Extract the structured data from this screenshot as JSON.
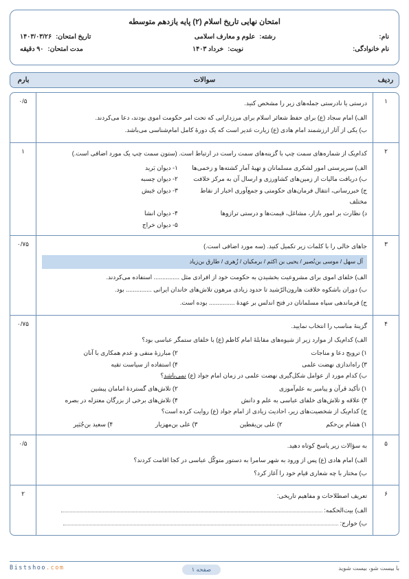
{
  "title": "امتحان نهایی تاریخ اسلام (۲) پایه یازدهم متوسطه",
  "info": {
    "row1": {
      "name_label": "نام:",
      "field_label": "رشته:",
      "field_value": "علوم و معارف اسلامی",
      "date_label": "تاریخ امتحان:",
      "date_value": "۱۴۰۳/۰۳/۲۶"
    },
    "row2": {
      "family_label": "نام خانوادگی:",
      "term_label": "نوبت:",
      "term_value": "خرداد ۱۴۰۳",
      "duration_label": "مدت امتحان:",
      "duration_value": "۹۰ دقیقه"
    }
  },
  "header": {
    "num": "ردیف",
    "q": "سوالات",
    "score": "بارم"
  },
  "questions": [
    {
      "num": "۱",
      "score": "۰/۵",
      "main": "درستی یا نادرستی جمله‌های زیر را مشخص کنید.",
      "subs": [
        "الف) امام سجاد (ع) برای حفظ شعائر اسلام برای مرزدارانی که تحت امر حکومت اموی بودند، دعا می‌کردند.",
        "ب) یکی از آثار ارزشمند امام هادی (ع) زیارت غدیر است که یک دورهٔ کامل امام‌شناسی می‌باشد."
      ]
    },
    {
      "num": "۲",
      "score": "۱",
      "main": "کدام‌یک از شماره‌های سمت چپ با گزینه‌های سمت راست در ارتباط است. (ستون سمت چپ یک مورد اضافی است.)",
      "pairs": [
        {
          "r": "الف) سرپرستی امور لشکری مسلمانان و تهیهٔ آمار کشته‌ها و زخمی‌ها",
          "l": "۱- دیوان بَرید"
        },
        {
          "r": "ب) دریافت مالیات از زمین‌های کشاورزی و ارسال آن به مرکز خلافت",
          "l": "۲- دیوان حِسبه"
        },
        {
          "r": "ج) خبررسانی، انتقال فرمان‌های حکومتی و جمع‌آوری اخبار از نقاط مختلف",
          "l": "۳- دیوان جَیش"
        },
        {
          "r": "د) نظارت بر امور بازار، مشاغل، قیمت‌ها و درستی ترازوها",
          "l": "۴- دیوان انشا"
        },
        {
          "r": "",
          "l": "۵- دیوان خراج"
        }
      ]
    },
    {
      "num": "۳",
      "score": "۰/۷۵",
      "main": "جاهای خالی را با کلمات زیر تکمیل کنید. (سه مورد اضافی است.)",
      "highlight": "آل سهل / موسی بن‌نُصیر / یحیی بن اکثم / برمکیان / زُهری / طارق بن‌زیاد",
      "subs": [
        "الف) خلفای اموی برای مشروعیت بخشیدن به حکومت خود از افرادی مثل ............... استفاده می‌کردند.",
        "ب) دوران باشکوه خلافت هارون‌الرّشید تا حدود زیادی مرهون تلاش‌های خاندان ایرانی ............... بود.",
        "ج) فرماندهی سپاه مسلمانان در فتح اندلس بر عهدهٔ ............... بوده است."
      ]
    },
    {
      "num": "۴",
      "score": "۰/۷۵",
      "main": "گزینهٔ مناسب را انتخاب نمایید.",
      "blocks": [
        {
          "q": "الف) کدام‌یک از موارد زیر از شیوه‌های مقابلهٔ امام کاظم (ع) با خلفای ستمگر عباسی بود؟",
          "opts": [
            "۱) ترویج دعا و مناجات",
            "۲) مبارزهٔ منفی و عدم همکاری با آنان",
            "۳) راه‌اندازی نهضت علمی",
            "۴) استفاده از سیاست تقیه"
          ]
        },
        {
          "q_html": "ب) کدام مورد از عوامل شکل‌گیری نهضت علمی در زمان امام جواد (ع) <span class='underlined'>نمی‌باشد</span>؟",
          "opts": [
            "۱) تأکید قرآن و پیامبر به علم‌آموزی",
            "۲) تلاش‌های گستردهٔ امامان پیشین",
            "۳) علاقه و تلاش‌های خلفای عباسی به علم و دانش",
            "۴) تلاش‌های برخی از بزرگان معتزله در بصره"
          ]
        },
        {
          "q": "ج) کدام‌یک از شخصیت‌های زیر، احادیث زیادی از امام جواد (ع) روایت کرده است؟",
          "opts4": [
            "۱) هشام بن‌حکم",
            "۲) علی بن‌یقطین",
            "۳) علی بن‌مهزیار",
            "۴) سعید بن‌جُبَیر"
          ]
        }
      ]
    },
    {
      "num": "۵",
      "score": "۰/۵",
      "main": "به سؤالات زیر پاسخ کوتاه دهید.",
      "subs": [
        "الف) امام هادی (ع) پس از ورود به شهر سامرا به دستور متوکّل عباسی در کجا اقامت کردند؟",
        "ب) مختار با چه شعاری قیام خود را آغاز کرد؟"
      ]
    },
    {
      "num": "۶",
      "score": "۲",
      "main": "تعریف اصطلاحات و مفاهیم تاریخی:",
      "subs": [
        "الف) بیت‌الحکمه:",
        "ب) خوارج:"
      ]
    }
  ],
  "footer": {
    "right": "با بیست شو، بیست شوید",
    "center": "صفحه ۱",
    "brand1": "Bistshoo",
    "brand2": ".com"
  },
  "colors": {
    "border": "#6b8fb5",
    "header_bg": "#d6e2f0",
    "highlight_bg": "#c4d8ee"
  }
}
